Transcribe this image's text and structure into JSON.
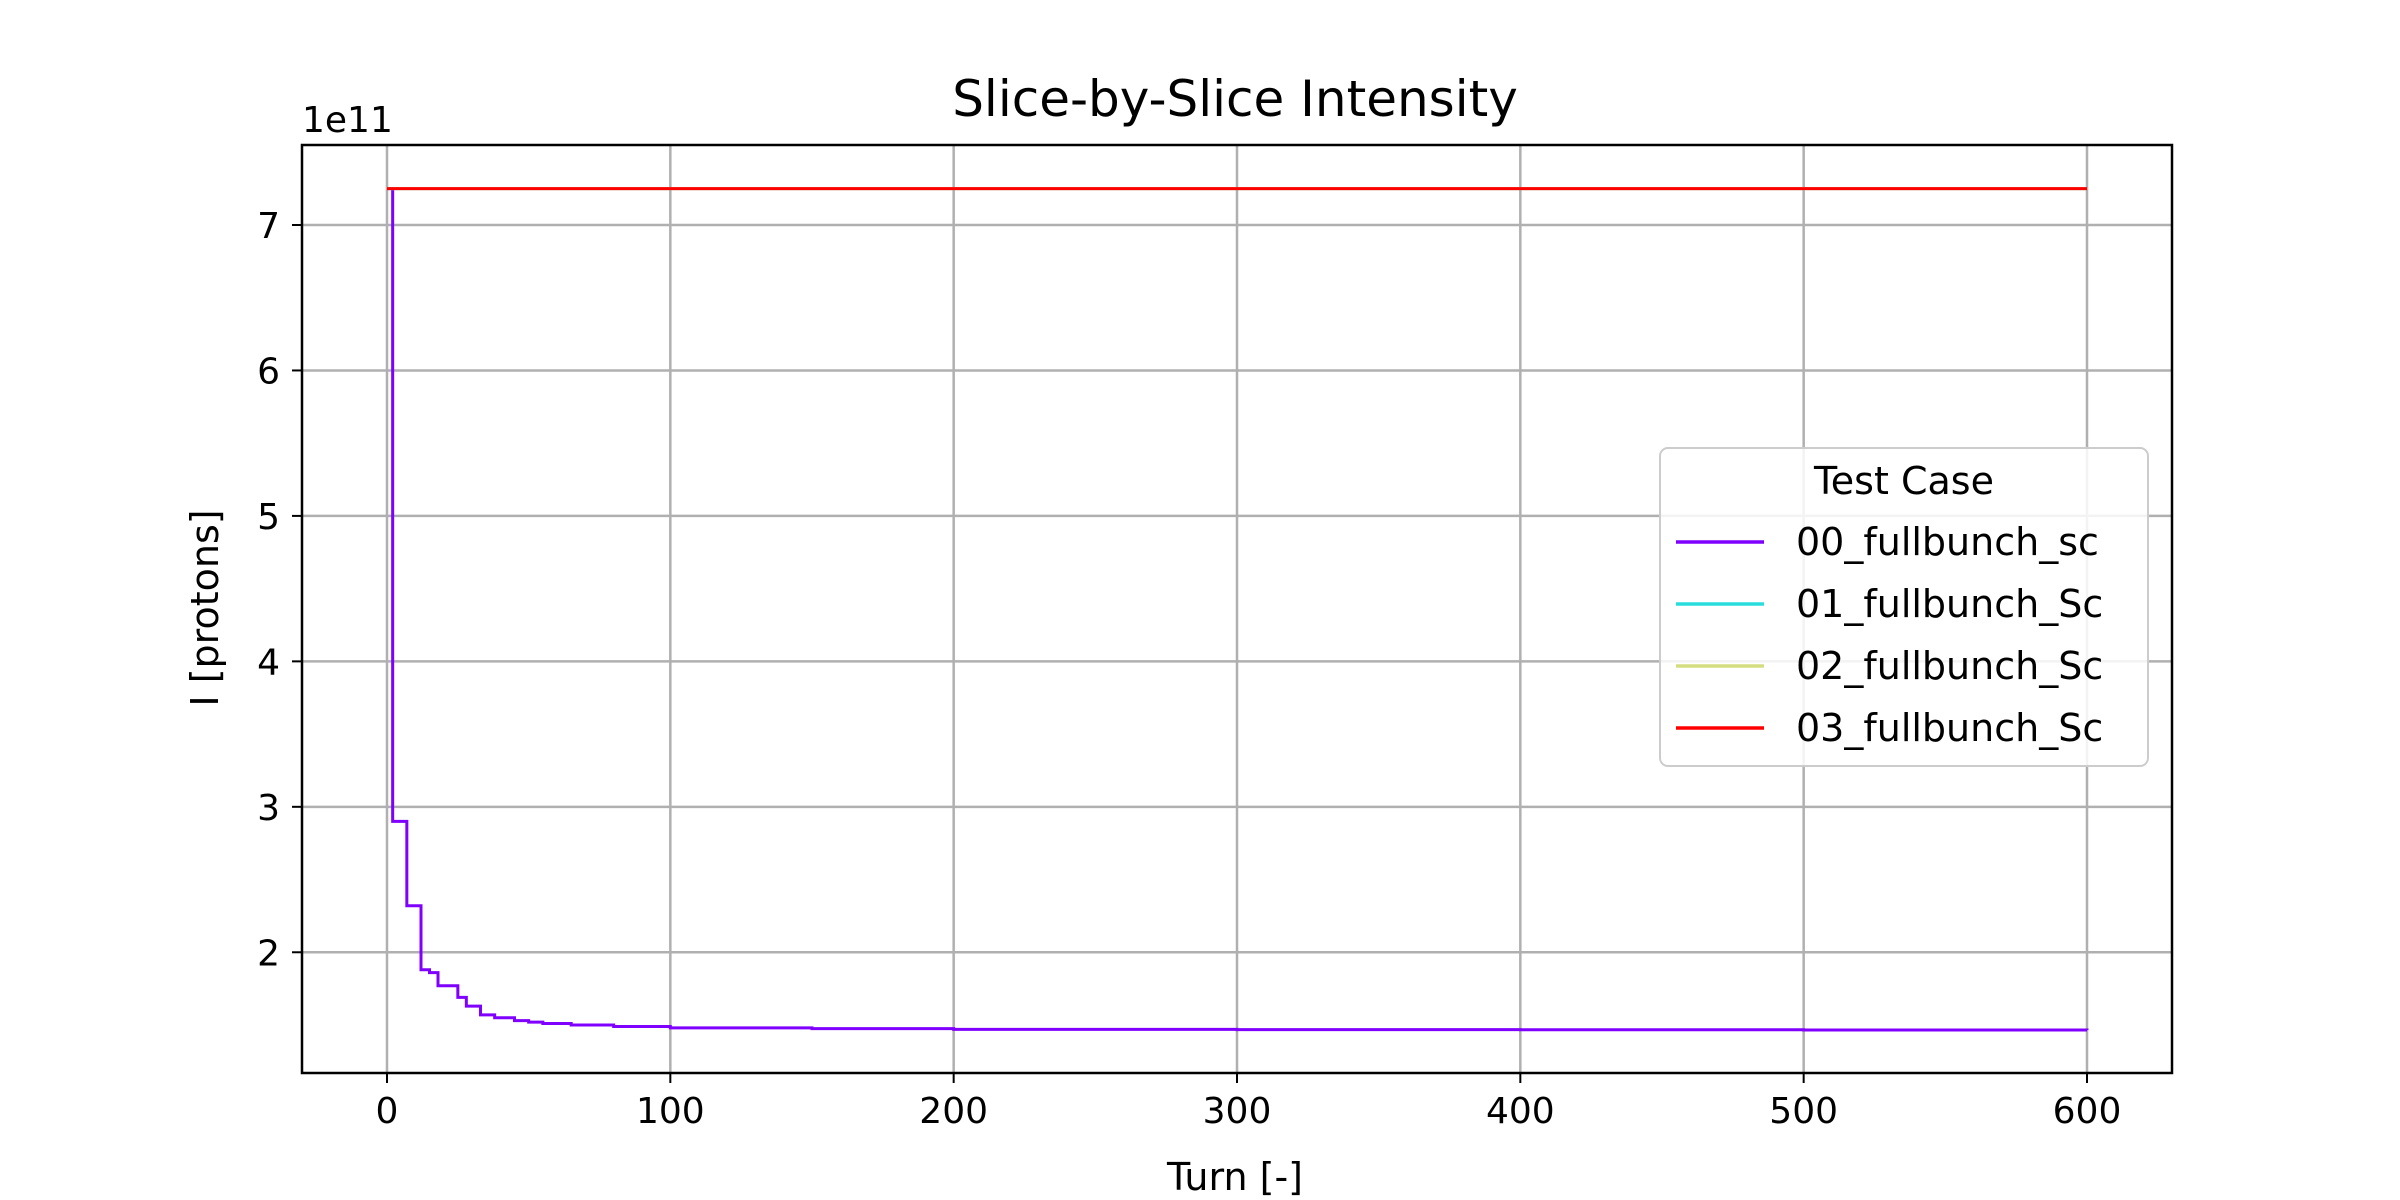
{
  "chart_data": {
    "type": "line",
    "title": "Slice-by-Slice Intensity",
    "xlabel": "Turn [-]",
    "ylabel": "I [protons]",
    "y_offset_label": "1e11",
    "y_scale_factor": 100000000000.0,
    "xlim": [
      -30,
      630
    ],
    "ylim": [
      1.17,
      7.55
    ],
    "xticks": [
      0,
      100,
      200,
      300,
      400,
      500,
      600
    ],
    "yticks": [
      2,
      3,
      4,
      5,
      6,
      7
    ],
    "grid": true,
    "legend": {
      "title": "Test Case",
      "position": "center-right"
    },
    "series": [
      {
        "name": "00_fullbunch_sc",
        "color": "#8000ff",
        "x": [
          0,
          2,
          5,
          7,
          9,
          12,
          15,
          18,
          21,
          25,
          28,
          33,
          38,
          45,
          50,
          55,
          65,
          80,
          100,
          150,
          200,
          300,
          400,
          500,
          600
        ],
        "y": [
          7.25,
          2.9,
          2.9,
          2.32,
          2.32,
          1.88,
          1.86,
          1.77,
          1.77,
          1.69,
          1.63,
          1.57,
          1.55,
          1.53,
          1.52,
          1.51,
          1.5,
          1.49,
          1.48,
          1.475,
          1.47,
          1.468,
          1.467,
          1.466,
          1.465
        ]
      },
      {
        "name": "01_fullbunch_Sc",
        "color": "#2adddd",
        "x": [
          0,
          600
        ],
        "y": [
          7.25,
          7.25
        ]
      },
      {
        "name": "02_fullbunch_Sc",
        "color": "#d4dd80",
        "x": [
          0,
          600
        ],
        "y": [
          7.25,
          7.25
        ]
      },
      {
        "name": "03_fullbunch_Sc",
        "color": "#ff0000",
        "x": [
          0,
          600
        ],
        "y": [
          7.25,
          7.25
        ]
      }
    ]
  }
}
